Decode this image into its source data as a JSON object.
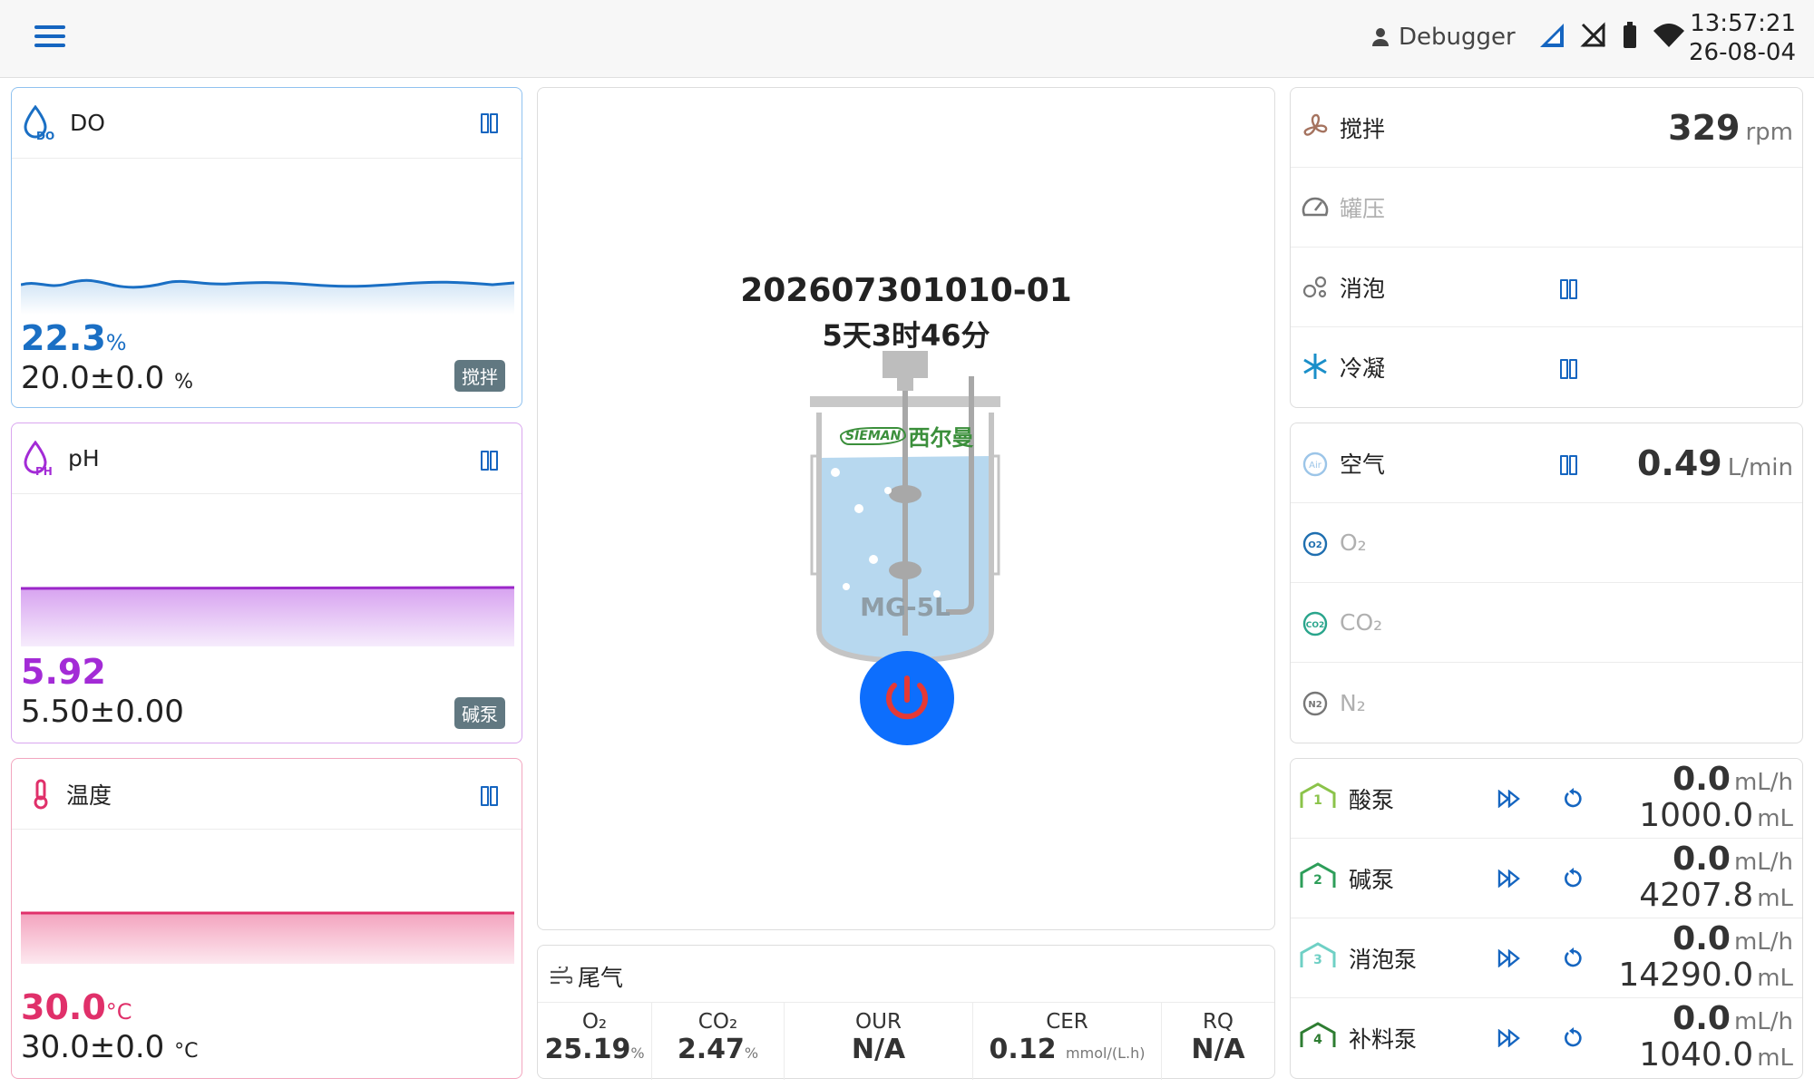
{
  "topbar": {
    "user": "Debugger",
    "time": "13:57:21",
    "date": "26-08-04"
  },
  "do_panel": {
    "label": "DO",
    "icon_sub": "DO",
    "value": "22.3",
    "value_unit": "%",
    "setpoint": "20.0±0.0",
    "setpoint_unit": "%",
    "tag": "搅拌",
    "color": "#1a6fc4"
  },
  "ph_panel": {
    "label": "pH",
    "icon_sub": "PH",
    "value": "5.92",
    "setpoint": "5.50±0.00",
    "tag": "碱泵",
    "color": "#a32bd6"
  },
  "temp_panel": {
    "label": "温度",
    "value": "30.0",
    "value_unit": "°C",
    "setpoint": "30.0±0.0",
    "setpoint_unit": "°C",
    "color": "#e0306a"
  },
  "center": {
    "batch_id": "202607301010-01",
    "elapsed": "5天3时46分",
    "vessel_model": "MG-5L",
    "logo_en": "SIEMAN",
    "logo_cn": "西尔曼"
  },
  "exhaust": {
    "title": "尾气",
    "columns": [
      {
        "header": "O₂",
        "value": "25.19",
        "unit": "%"
      },
      {
        "header": "CO₂",
        "value": "2.47",
        "unit": "%"
      },
      {
        "header": "OUR",
        "value": "N/A",
        "unit": ""
      },
      {
        "header": "CER",
        "value": "0.12",
        "unit": "mmol/(L.h)"
      },
      {
        "header": "RQ",
        "value": "N/A",
        "unit": ""
      }
    ]
  },
  "group1": {
    "stir": {
      "label": "搅拌",
      "value": "329",
      "unit": "rpm"
    },
    "pressure": {
      "label": "罐压"
    },
    "defoam": {
      "label": "消泡"
    },
    "condense": {
      "label": "冷凝"
    }
  },
  "group2": {
    "air": {
      "label": "空气",
      "value": "0.49",
      "unit": "L/min"
    },
    "o2": {
      "label": "O₂"
    },
    "co2": {
      "label": "CO₂"
    },
    "n2": {
      "label": "N₂"
    }
  },
  "pumps": [
    {
      "num": "1",
      "label": "酸泵",
      "rate": "0.0",
      "rate_unit": "mL/h",
      "volume": "1000.0",
      "volume_unit": "mL",
      "color": "#8bc34a"
    },
    {
      "num": "2",
      "label": "碱泵",
      "rate": "0.0",
      "rate_unit": "mL/h",
      "volume": "4207.8",
      "volume_unit": "mL",
      "color": "#2e9e5a"
    },
    {
      "num": "3",
      "label": "消泡泵",
      "rate": "0.0",
      "rate_unit": "mL/h",
      "volume": "14290.0",
      "volume_unit": "mL",
      "color": "#6fd0c5"
    },
    {
      "num": "4",
      "label": "补料泵",
      "rate": "0.0",
      "rate_unit": "mL/h",
      "volume": "1040.0",
      "volume_unit": "mL",
      "color": "#2e7d32"
    }
  ]
}
